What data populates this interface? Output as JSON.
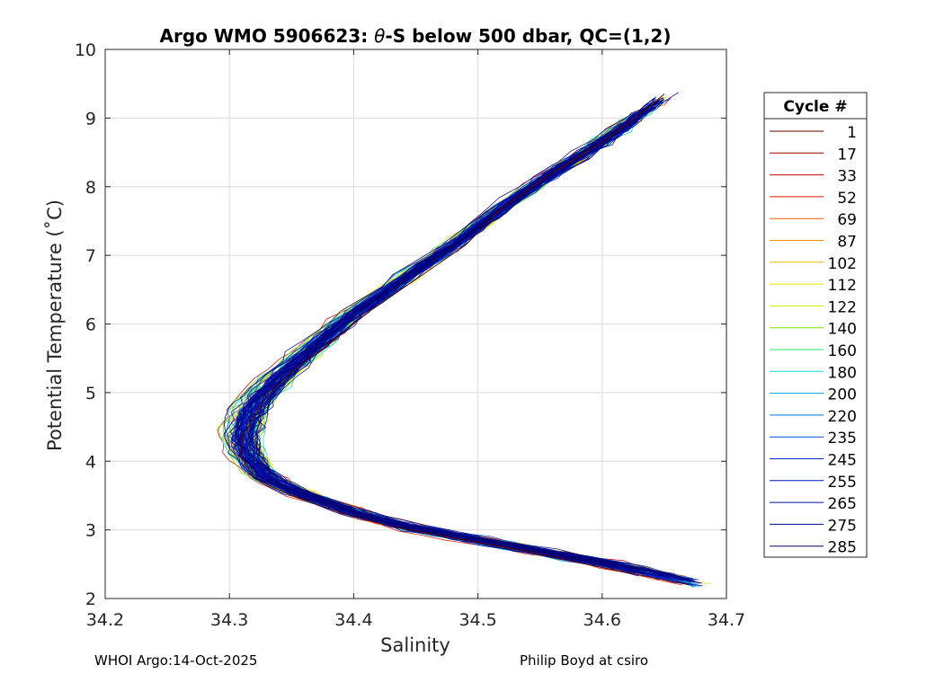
{
  "chart_data": {
    "type": "line",
    "title": "Argo WMO 5906623: θ-S below 500 dbar,  QC=(1,2)",
    "title_prefix": "Argo WMO 5906623: ",
    "title_theta": "θ",
    "title_suffix": "-S below 500 dbar,  QC=(1,2)",
    "xlabel": "Salinity",
    "ylabel": "Potential Temperature (˚C)",
    "xlim": [
      34.2,
      34.7
    ],
    "ylim": [
      2,
      10
    ],
    "xticks": [
      34.2,
      34.3,
      34.4,
      34.5,
      34.6,
      34.7
    ],
    "xtick_labels": [
      "34.2",
      "34.3",
      "34.4",
      "34.5",
      "34.6",
      "34.7"
    ],
    "yticks": [
      2,
      3,
      4,
      5,
      6,
      7,
      8,
      9,
      10
    ],
    "ytick_labels": [
      "2",
      "3",
      "4",
      "5",
      "6",
      "7",
      "8",
      "9",
      "10"
    ],
    "grid": true,
    "legend": {
      "title": "Cycle #",
      "placement": "outside-right",
      "entries": [
        {
          "label": "1",
          "color": "#5e0000"
        },
        {
          "label": "17",
          "color": "#9e0000"
        },
        {
          "label": "33",
          "color": "#c80000"
        },
        {
          "label": "52",
          "color": "#e01a00"
        },
        {
          "label": "69",
          "color": "#ee6000"
        },
        {
          "label": "87",
          "color": "#f29000"
        },
        {
          "label": "102",
          "color": "#f5bb00"
        },
        {
          "label": "112",
          "color": "#f2e000"
        },
        {
          "label": "122",
          "color": "#c8e800"
        },
        {
          "label": "140",
          "color": "#7fe000"
        },
        {
          "label": "160",
          "color": "#2ee07a"
        },
        {
          "label": "180",
          "color": "#14d8c8"
        },
        {
          "label": "200",
          "color": "#00a8e8"
        },
        {
          "label": "220",
          "color": "#0070e0"
        },
        {
          "label": "235",
          "color": "#0048d8"
        },
        {
          "label": "245",
          "color": "#0028d0"
        },
        {
          "label": "255",
          "color": "#0010c0"
        },
        {
          "label": "265",
          "color": "#000aa8"
        },
        {
          "label": "275",
          "color": "#000890"
        },
        {
          "label": "285",
          "color": "#000070"
        }
      ]
    },
    "mean_profile": {
      "S": [
        34.68,
        34.62,
        34.56,
        34.5,
        34.44,
        34.4,
        34.36,
        34.33,
        34.315,
        34.31,
        34.315,
        34.325,
        34.345,
        34.37,
        34.4,
        34.44,
        34.48,
        34.52,
        34.56,
        34.6,
        34.63,
        34.655
      ],
      "T": [
        2.2,
        2.45,
        2.65,
        2.85,
        3.05,
        3.25,
        3.5,
        3.75,
        4.05,
        4.35,
        4.65,
        4.95,
        5.3,
        5.7,
        6.15,
        6.65,
        7.15,
        7.7,
        8.2,
        8.65,
        9.05,
        9.35
      ]
    },
    "series": [
      {
        "name": "1",
        "S": [
          34.67,
          34.6,
          34.55,
          34.49,
          34.43,
          34.39,
          34.35,
          34.32,
          34.31,
          34.31,
          34.32,
          34.33,
          34.35,
          34.38,
          34.41,
          34.45,
          34.49,
          34.52,
          34.56,
          34.6,
          34.63,
          34.65
        ],
        "T": [
          2.2,
          2.45,
          2.65,
          2.85,
          3.05,
          3.25,
          3.5,
          3.75,
          4.05,
          4.35,
          4.65,
          4.95,
          5.3,
          5.7,
          6.15,
          6.65,
          7.15,
          7.7,
          8.2,
          8.65,
          9.05,
          9.35
        ]
      }
    ]
  },
  "footer": {
    "left": "WHOI Argo:14-Oct-2025",
    "right": "Philip Boyd at csiro"
  }
}
